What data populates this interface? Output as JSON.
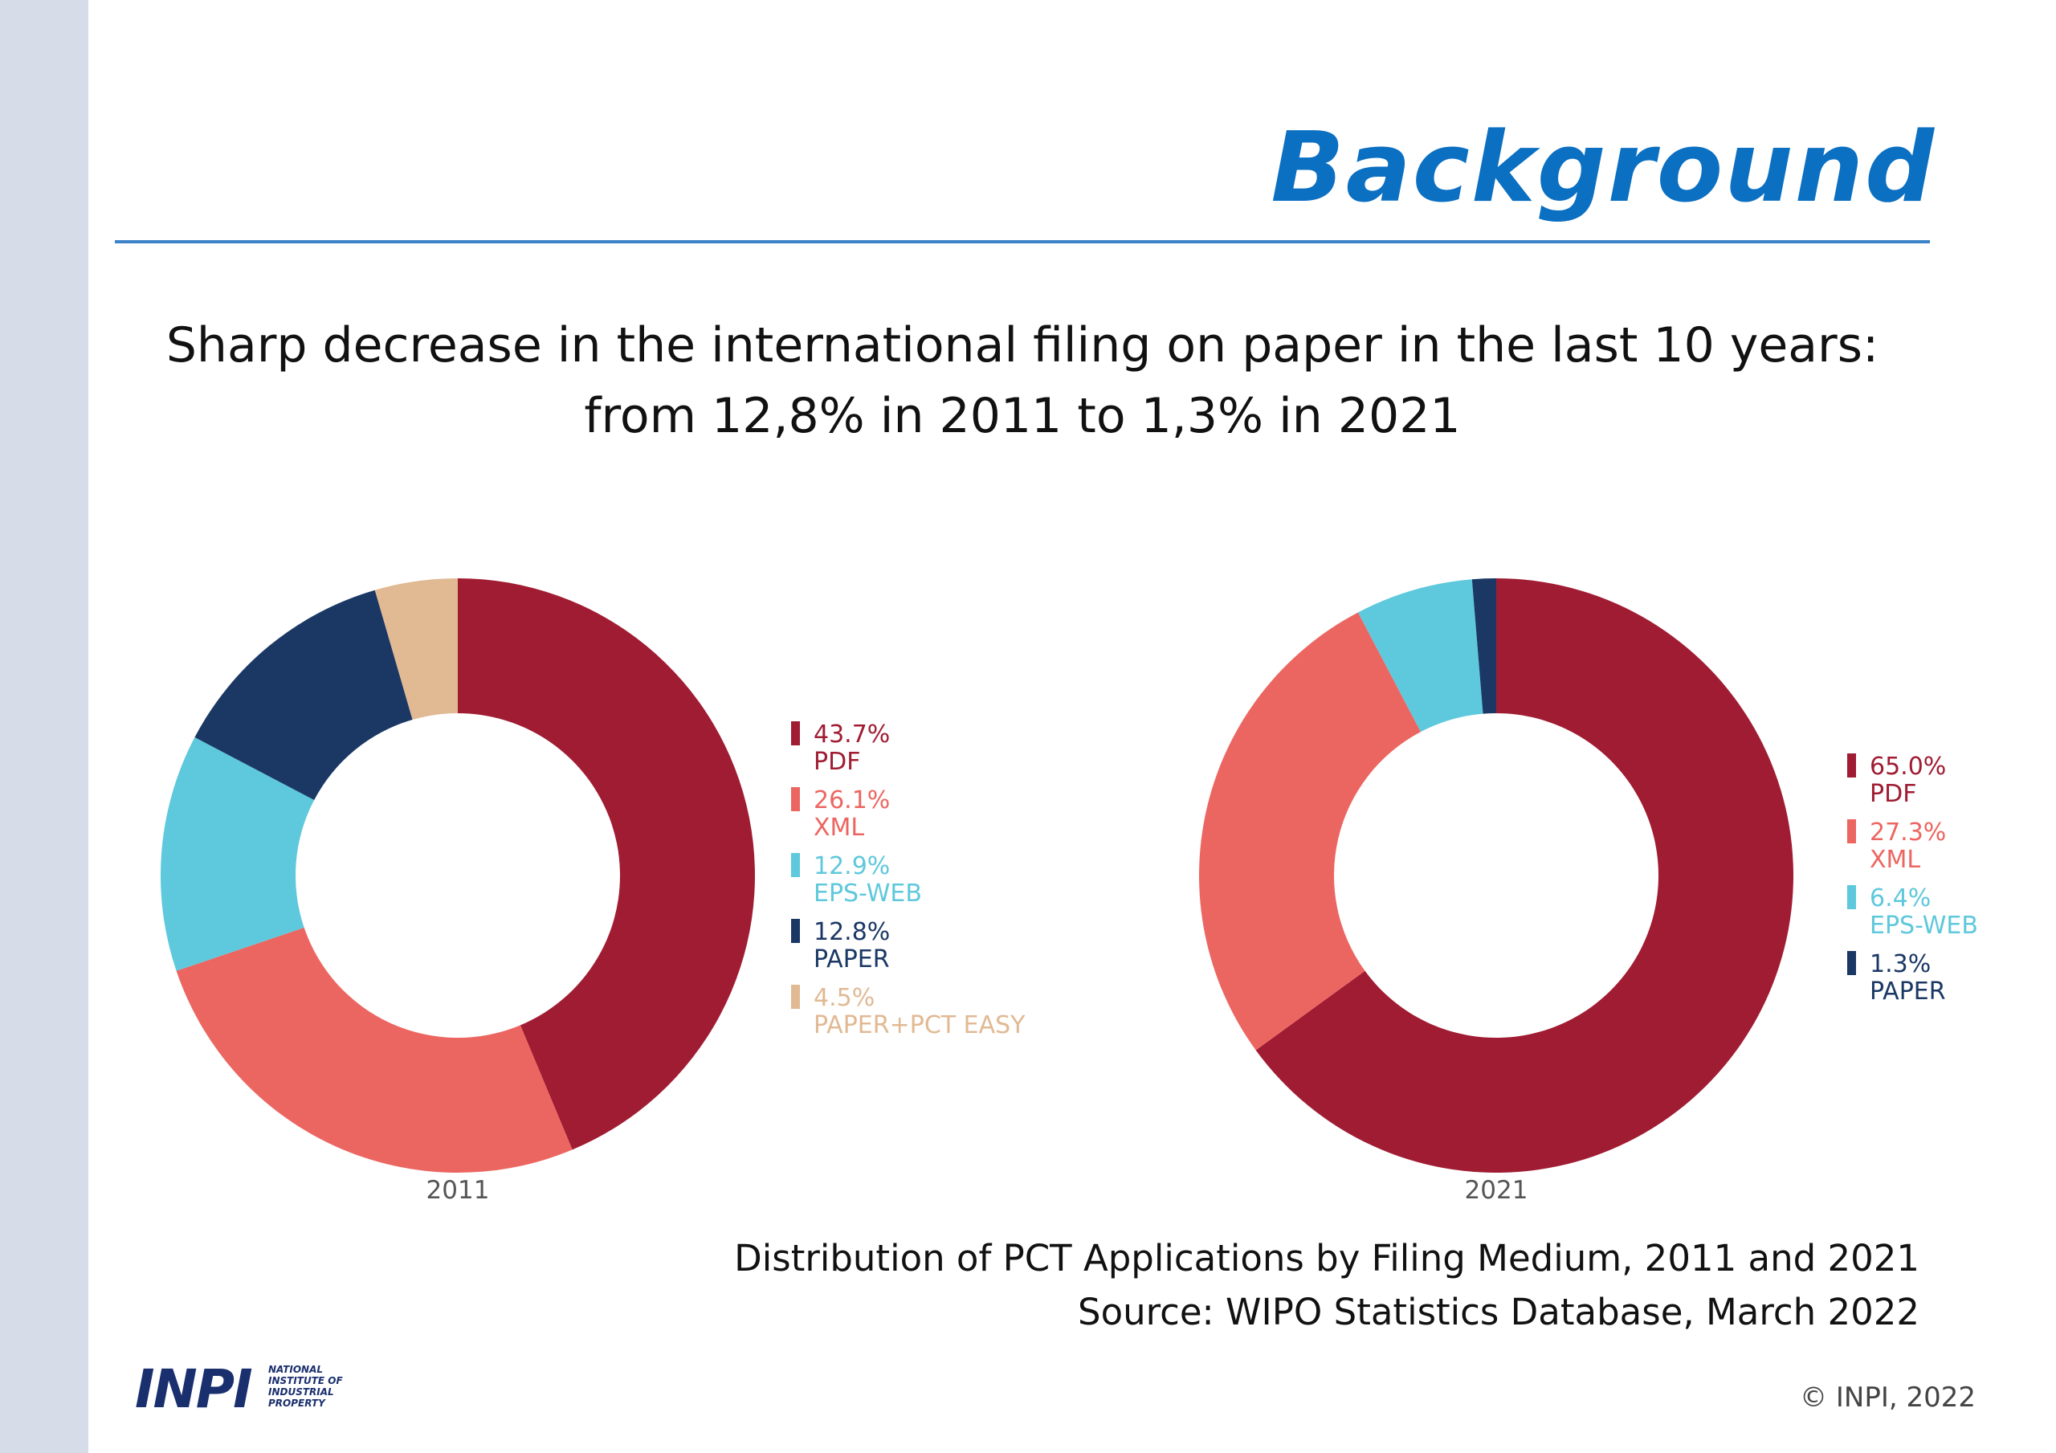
{
  "slide": {
    "title": "Background",
    "headline_line1": "Sharp decrease in the international filing on paper in the last 10 years:",
    "headline_line2": "from 12,8% in 2011 to 1,3% in 2021",
    "caption_line1": "Distribution of PCT Applications by Filing Medium, 2011 and 2021",
    "caption_line2": "Source:  WIPO Statistics Database, March 2022",
    "logo": "INPI",
    "logo_text": [
      "NATIONAL",
      "INSTITUTE OF",
      "INDUSTRIAL",
      "PROPERTY"
    ],
    "copyright": "© INPI, 2022",
    "colors": {
      "title": "#0b6fc2",
      "rule": "#3b82c8",
      "sidebar": "#d7dde8",
      "logo": "#1a2f6e"
    }
  },
  "chart_data": [
    {
      "type": "pie",
      "variant": "donut",
      "year_label": "2011",
      "legend_position": "right",
      "slices": [
        {
          "label": "PDF",
          "value": 43.7,
          "value_label": "43.7%",
          "color": "#a01c33"
        },
        {
          "label": "XML",
          "value": 26.1,
          "value_label": "26.1%",
          "color": "#ec6661"
        },
        {
          "label": "EPS-WEB",
          "value": 12.9,
          "value_label": "12.9%",
          "color": "#5ec8dc"
        },
        {
          "label": "PAPER",
          "value": 12.8,
          "value_label": "12.8%",
          "color": "#1b3865"
        },
        {
          "label": "PAPER+PCT EASY",
          "value": 4.5,
          "value_label": "4.5%",
          "color": "#e1b993"
        }
      ]
    },
    {
      "type": "pie",
      "variant": "donut",
      "year_label": "2021",
      "legend_position": "right",
      "slices": [
        {
          "label": "PDF",
          "value": 65.0,
          "value_label": "65.0%",
          "color": "#a01c33"
        },
        {
          "label": "XML",
          "value": 27.3,
          "value_label": "27.3%",
          "color": "#ec6661"
        },
        {
          "label": "EPS-WEB",
          "value": 6.4,
          "value_label": "6.4%",
          "color": "#5ec8dc"
        },
        {
          "label": "PAPER",
          "value": 1.3,
          "value_label": "1.3%",
          "color": "#1b3865"
        }
      ]
    }
  ]
}
